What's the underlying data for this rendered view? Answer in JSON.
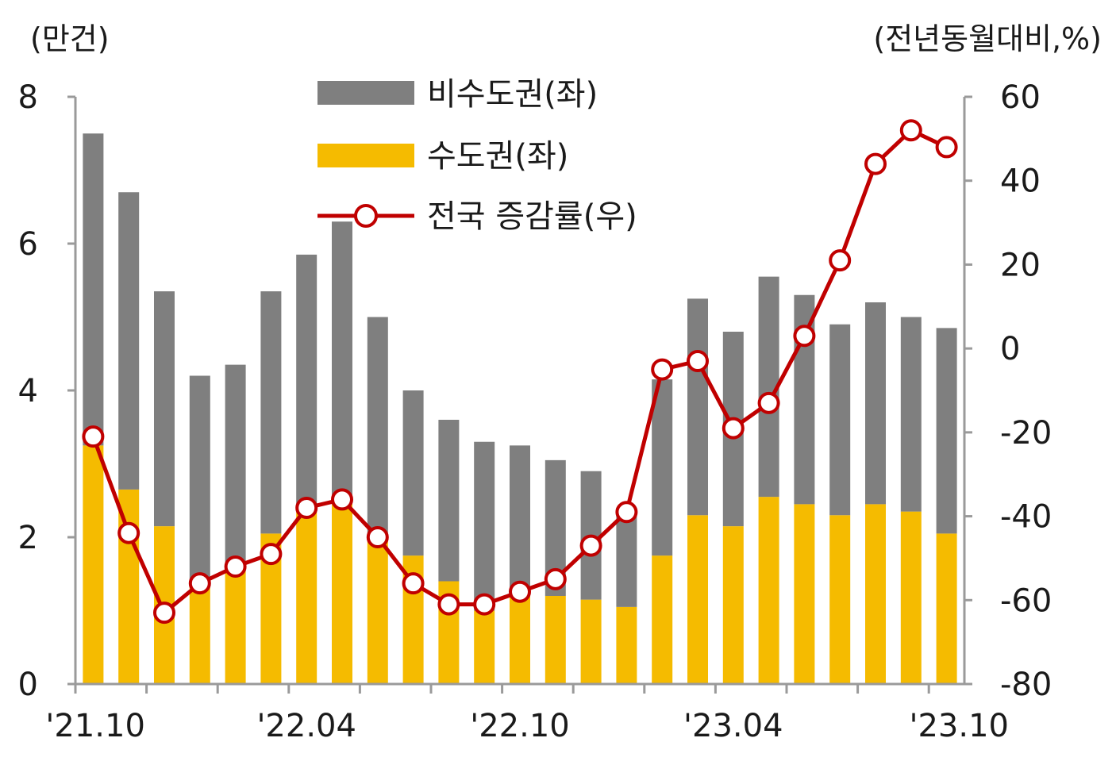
{
  "chart_data": {
    "type": "bar+line",
    "title": "",
    "left_axis": {
      "unit_label": "(만건)",
      "ylim": [
        0,
        8
      ],
      "ticks": [
        "0",
        "2",
        "4",
        "6",
        "8"
      ]
    },
    "right_axis": {
      "unit_label": "(전년동월대비,%)",
      "ylim": [
        -80,
        60
      ],
      "ticks": [
        "-80",
        "-60",
        "-40",
        "-20",
        "0",
        "20",
        "40",
        "60"
      ]
    },
    "x_tick_labels": [
      "'21.10",
      "'22.04",
      "'22.10",
      "'23.04",
      "'23.10"
    ],
    "categories": [
      "2021-10",
      "2021-11",
      "2021-12",
      "2022-01",
      "2022-02",
      "2022-03",
      "2022-04",
      "2022-05",
      "2022-06",
      "2022-07",
      "2022-08",
      "2022-09",
      "2022-10",
      "2022-11",
      "2022-12",
      "2023-01",
      "2023-02",
      "2023-03",
      "2023-04",
      "2023-05",
      "2023-06",
      "2023-07",
      "2023-08",
      "2023-09",
      "2023-10"
    ],
    "stack_series": [
      {
        "name": "수도권(좌)",
        "color": "#f5bb00",
        "values": [
          3.25,
          2.65,
          2.15,
          1.35,
          1.55,
          2.05,
          2.4,
          2.5,
          2.0,
          1.75,
          1.4,
          1.0,
          1.3,
          1.2,
          1.15,
          1.05,
          1.75,
          2.3,
          2.15,
          2.55,
          2.45,
          2.3,
          2.45,
          2.35,
          2.05
        ]
      },
      {
        "name": "비수도권(좌)",
        "color": "#7f7f7f",
        "values": [
          4.25,
          4.05,
          3.2,
          2.85,
          2.8,
          3.3,
          3.45,
          3.8,
          3.0,
          2.25,
          2.2,
          2.3,
          1.95,
          1.85,
          1.75,
          1.35,
          2.4,
          2.95,
          2.65,
          3.0,
          2.85,
          2.6,
          2.75,
          2.65,
          2.8
        ]
      }
    ],
    "line_series": {
      "name": "전국 증감률(우)",
      "color": "#c00000",
      "marker_fill": "#ffffff",
      "values": [
        -21,
        -44,
        -63,
        -56,
        -52,
        -49,
        -38,
        -36,
        -45,
        -56,
        -61,
        -61,
        -58,
        -55,
        -47,
        -39,
        -5,
        -3,
        -19,
        -13,
        3,
        21,
        44,
        52,
        48
      ]
    },
    "legend": {
      "placement": "top-center",
      "items": [
        "비수도권(좌)",
        "수도권(좌)",
        "전국 증감률(우)"
      ]
    },
    "grid": false
  }
}
